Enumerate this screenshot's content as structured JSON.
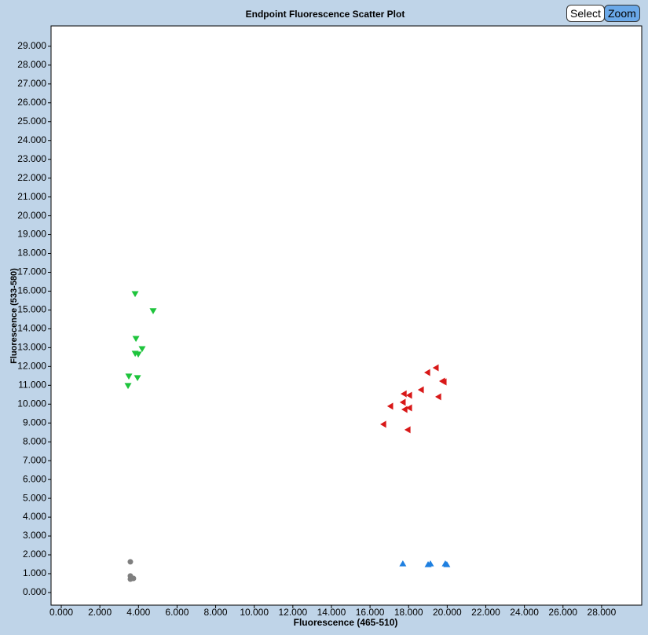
{
  "chart_data": {
    "type": "scatter",
    "title": "Endpoint Fluorescence Scatter Plot",
    "x_label": "Fluorescence (465-510)",
    "y_label": "Fluorescence (533-580)",
    "xlim": [
      -530,
      30080
    ],
    "ylim": [
      -670,
      30080
    ],
    "xticks": [
      {
        "value": 0,
        "label": "0.000"
      },
      {
        "value": 2000,
        "label": "2.000"
      },
      {
        "value": 4000,
        "label": "4.000"
      },
      {
        "value": 6000,
        "label": "6.000"
      },
      {
        "value": 8000,
        "label": "8.000"
      },
      {
        "value": 10000,
        "label": "10.000"
      },
      {
        "value": 12000,
        "label": "12.000"
      },
      {
        "value": 14000,
        "label": "14.000"
      },
      {
        "value": 16000,
        "label": "16.000"
      },
      {
        "value": 18000,
        "label": "18.000"
      },
      {
        "value": 20000,
        "label": "20.000"
      },
      {
        "value": 22000,
        "label": "22.000"
      },
      {
        "value": 24000,
        "label": "24.000"
      },
      {
        "value": 26000,
        "label": "26.000"
      },
      {
        "value": 28000,
        "label": "28.000"
      }
    ],
    "yticks": [
      {
        "value": 0,
        "label": "0.000"
      },
      {
        "value": 1000,
        "label": "1.000"
      },
      {
        "value": 2000,
        "label": "2.000"
      },
      {
        "value": 3000,
        "label": "3.000"
      },
      {
        "value": 4000,
        "label": "4.000"
      },
      {
        "value": 5000,
        "label": "5.000"
      },
      {
        "value": 6000,
        "label": "6.000"
      },
      {
        "value": 7000,
        "label": "7.000"
      },
      {
        "value": 8000,
        "label": "8.000"
      },
      {
        "value": 9000,
        "label": "9.000"
      },
      {
        "value": 10000,
        "label": "10.000"
      },
      {
        "value": 11000,
        "label": "11.000"
      },
      {
        "value": 12000,
        "label": "12.000"
      },
      {
        "value": 13000,
        "label": "13.000"
      },
      {
        "value": 14000,
        "label": "14.000"
      },
      {
        "value": 15000,
        "label": "15.000"
      },
      {
        "value": 16000,
        "label": "16.000"
      },
      {
        "value": 17000,
        "label": "17.000"
      },
      {
        "value": 18000,
        "label": "18.000"
      },
      {
        "value": 19000,
        "label": "19.000"
      },
      {
        "value": 20000,
        "label": "20.000"
      },
      {
        "value": 21000,
        "label": "21.000"
      },
      {
        "value": 22000,
        "label": "22.000"
      },
      {
        "value": 23000,
        "label": "23.000"
      },
      {
        "value": 24000,
        "label": "24.000"
      },
      {
        "value": 25000,
        "label": "25.000"
      },
      {
        "value": 26000,
        "label": "26.000"
      },
      {
        "value": 27000,
        "label": "27.000"
      },
      {
        "value": 28000,
        "label": "28.000"
      },
      {
        "value": 29000,
        "label": "29.000"
      }
    ],
    "grid": false,
    "series": [
      {
        "color": "#1ec43c",
        "marker": "triangle-down",
        "x": [
          3826,
          4760,
          3870,
          4190,
          3830,
          3990,
          3500,
          3950,
          3460
        ],
        "y": [
          15850,
          14940,
          13470,
          12930,
          12680,
          12640,
          11470,
          11390,
          10970
        ]
      },
      {
        "color": "#d81818",
        "marker": "triangle-left",
        "x": [
          19410,
          18970,
          19740,
          19820,
          18640,
          17750,
          18030,
          19540,
          17700,
          17050,
          18030,
          17790,
          16690,
          17950
        ],
        "y": [
          11930,
          11680,
          11220,
          11180,
          10760,
          10550,
          10470,
          10390,
          10100,
          9890,
          9800,
          9720,
          8930,
          8640
        ]
      },
      {
        "color": "#1e7fe0",
        "marker": "triangle-up",
        "x": [
          17700,
          19010,
          19130,
          19900,
          19980
        ],
        "y": [
          1540,
          1500,
          1540,
          1540,
          1500
        ]
      },
      {
        "color": "#7f7f7f",
        "marker": "circle",
        "x": [
          3580,
          3580,
          3660,
          3580,
          3740
        ],
        "y": [
          1630,
          880,
          750,
          710,
          750
        ]
      }
    ]
  },
  "toolbar": {
    "select": "Select",
    "zoom": "Zoom"
  }
}
